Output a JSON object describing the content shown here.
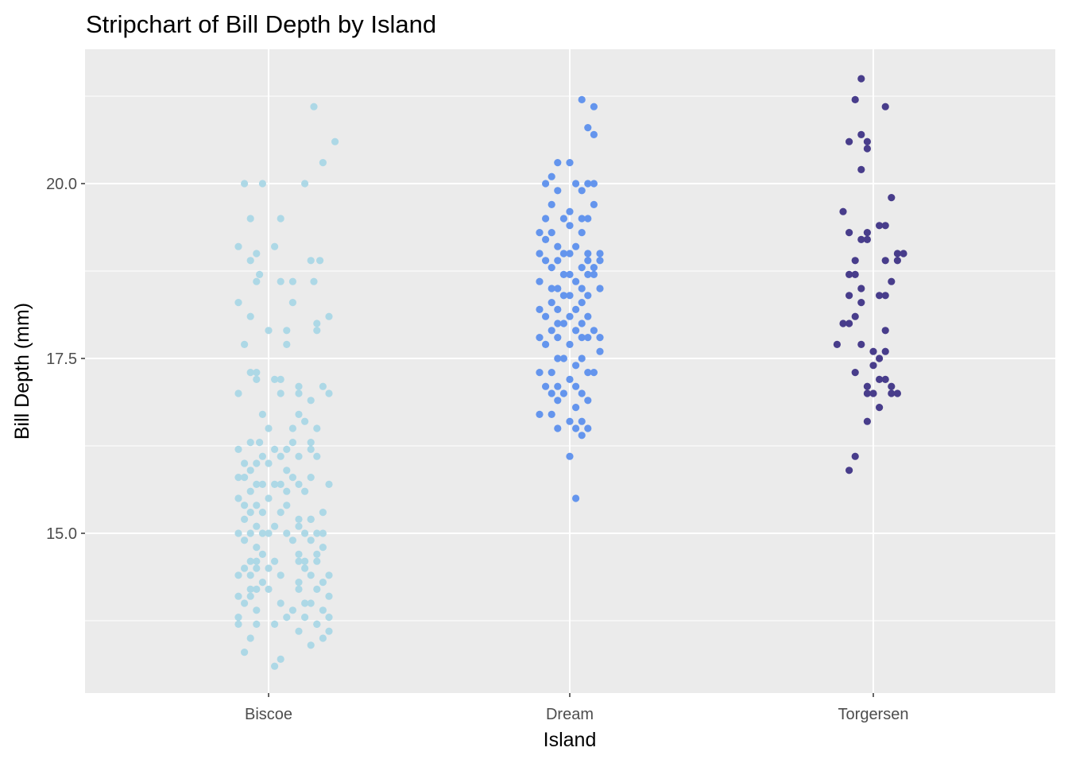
{
  "chart_data": {
    "type": "scatter",
    "subtype": "stripchart",
    "title": "Stripchart of Bill Depth by Island",
    "xlabel": "Island",
    "ylabel": "Bill Depth (mm)",
    "categories": [
      "Biscoe",
      "Dream",
      "Torgersen"
    ],
    "ylim": [
      13.0,
      21.5
    ],
    "y_ticks": [
      "15.0",
      "17.5",
      "20.0"
    ],
    "y_tick_values": [
      15.0,
      17.5,
      20.0
    ],
    "grid": true,
    "legend": "none",
    "panel_background": "#EBEBEB",
    "grid_color": "#FFFFFF",
    "series": [
      {
        "category": "Biscoe",
        "color": "#ADD8E6",
        "points": [
          [
            0.15,
            21.1
          ],
          [
            0.22,
            20.6
          ],
          [
            0.18,
            20.3
          ],
          [
            -0.08,
            20.0
          ],
          [
            -0.02,
            20.0
          ],
          [
            0.12,
            20.0
          ],
          [
            -0.06,
            19.5
          ],
          [
            0.04,
            19.5
          ],
          [
            -0.1,
            19.1
          ],
          [
            -0.04,
            19.0
          ],
          [
            0.02,
            19.1
          ],
          [
            -0.06,
            18.9
          ],
          [
            0.14,
            18.9
          ],
          [
            0.17,
            18.9
          ],
          [
            -0.03,
            18.7
          ],
          [
            0.04,
            18.6
          ],
          [
            -0.04,
            18.6
          ],
          [
            0.08,
            18.6
          ],
          [
            0.15,
            18.6
          ],
          [
            -0.1,
            18.3
          ],
          [
            0.08,
            18.3
          ],
          [
            -0.06,
            18.1
          ],
          [
            0.2,
            18.1
          ],
          [
            0.16,
            18.0
          ],
          [
            0.0,
            17.9
          ],
          [
            0.06,
            17.9
          ],
          [
            0.16,
            17.9
          ],
          [
            -0.08,
            17.7
          ],
          [
            0.06,
            17.7
          ],
          [
            -0.04,
            17.3
          ],
          [
            -0.06,
            17.3
          ],
          [
            0.04,
            17.2
          ],
          [
            -0.04,
            17.2
          ],
          [
            0.02,
            17.2
          ],
          [
            0.1,
            17.1
          ],
          [
            0.18,
            17.1
          ],
          [
            0.2,
            17.0
          ],
          [
            -0.1,
            17.0
          ],
          [
            0.04,
            17.0
          ],
          [
            0.1,
            17.0
          ],
          [
            0.14,
            16.9
          ],
          [
            -0.02,
            16.7
          ],
          [
            0.1,
            16.7
          ],
          [
            0.12,
            16.6
          ],
          [
            0.08,
            16.5
          ],
          [
            0.16,
            16.5
          ],
          [
            0.0,
            16.5
          ],
          [
            -0.06,
            16.3
          ],
          [
            -0.03,
            16.3
          ],
          [
            0.08,
            16.3
          ],
          [
            0.14,
            16.3
          ],
          [
            -0.1,
            16.2
          ],
          [
            0.02,
            16.2
          ],
          [
            0.06,
            16.2
          ],
          [
            0.14,
            16.2
          ],
          [
            -0.02,
            16.1
          ],
          [
            0.04,
            16.1
          ],
          [
            0.1,
            16.1
          ],
          [
            0.16,
            16.1
          ],
          [
            -0.08,
            16.0
          ],
          [
            -0.04,
            16.0
          ],
          [
            0.0,
            16.0
          ],
          [
            -0.06,
            15.9
          ],
          [
            0.06,
            15.9
          ],
          [
            -0.1,
            15.8
          ],
          [
            -0.08,
            15.8
          ],
          [
            0.08,
            15.8
          ],
          [
            0.14,
            15.8
          ],
          [
            -0.04,
            15.7
          ],
          [
            -0.02,
            15.7
          ],
          [
            0.02,
            15.7
          ],
          [
            0.04,
            15.7
          ],
          [
            0.1,
            15.7
          ],
          [
            0.2,
            15.7
          ],
          [
            -0.06,
            15.6
          ],
          [
            0.06,
            15.6
          ],
          [
            0.12,
            15.6
          ],
          [
            -0.1,
            15.5
          ],
          [
            0.0,
            15.5
          ],
          [
            -0.08,
            15.4
          ],
          [
            -0.04,
            15.4
          ],
          [
            0.06,
            15.4
          ],
          [
            0.18,
            15.3
          ],
          [
            -0.06,
            15.3
          ],
          [
            -0.02,
            15.3
          ],
          [
            0.04,
            15.3
          ],
          [
            0.14,
            15.2
          ],
          [
            0.1,
            15.2
          ],
          [
            0.14,
            15.2
          ],
          [
            -0.08,
            15.2
          ],
          [
            0.02,
            15.1
          ],
          [
            -0.04,
            15.1
          ],
          [
            0.1,
            15.1
          ],
          [
            0.18,
            15.0
          ],
          [
            -0.1,
            15.0
          ],
          [
            -0.06,
            15.0
          ],
          [
            -0.02,
            15.0
          ],
          [
            0.0,
            15.0
          ],
          [
            0.06,
            15.0
          ],
          [
            0.12,
            15.0
          ],
          [
            0.16,
            15.0
          ],
          [
            -0.08,
            14.9
          ],
          [
            0.08,
            14.9
          ],
          [
            0.14,
            14.9
          ],
          [
            -0.04,
            14.8
          ],
          [
            0.18,
            14.8
          ],
          [
            -0.02,
            14.7
          ],
          [
            0.1,
            14.7
          ],
          [
            0.16,
            14.7
          ],
          [
            -0.04,
            14.6
          ],
          [
            0.1,
            14.6
          ],
          [
            0.16,
            14.6
          ],
          [
            -0.06,
            14.6
          ],
          [
            0.12,
            14.6
          ],
          [
            0.02,
            14.6
          ],
          [
            -0.08,
            14.5
          ],
          [
            -0.04,
            14.5
          ],
          [
            0.0,
            14.5
          ],
          [
            0.12,
            14.5
          ],
          [
            -0.06,
            14.4
          ],
          [
            0.04,
            14.4
          ],
          [
            0.14,
            14.4
          ],
          [
            0.2,
            14.4
          ],
          [
            -0.1,
            14.4
          ],
          [
            -0.02,
            14.3
          ],
          [
            0.1,
            14.3
          ],
          [
            0.18,
            14.3
          ],
          [
            -0.06,
            14.2
          ],
          [
            0.16,
            14.2
          ],
          [
            -0.04,
            14.2
          ],
          [
            0.1,
            14.2
          ],
          [
            0.0,
            14.2
          ],
          [
            -0.1,
            14.1
          ],
          [
            -0.06,
            14.1
          ],
          [
            0.2,
            14.1
          ],
          [
            0.14,
            14.0
          ],
          [
            -0.08,
            14.0
          ],
          [
            0.04,
            14.0
          ],
          [
            0.12,
            14.0
          ],
          [
            -0.04,
            13.9
          ],
          [
            0.08,
            13.9
          ],
          [
            0.18,
            13.9
          ],
          [
            0.06,
            13.8
          ],
          [
            0.12,
            13.8
          ],
          [
            -0.1,
            13.8
          ],
          [
            0.2,
            13.8
          ],
          [
            -0.04,
            13.7
          ],
          [
            0.16,
            13.7
          ],
          [
            0.16,
            13.7
          ],
          [
            -0.1,
            13.7
          ],
          [
            0.02,
            13.7
          ],
          [
            0.1,
            13.6
          ],
          [
            0.2,
            13.6
          ],
          [
            0.18,
            13.5
          ],
          [
            -0.06,
            13.5
          ],
          [
            0.14,
            13.4
          ],
          [
            -0.08,
            13.3
          ],
          [
            0.04,
            13.2
          ],
          [
            0.02,
            13.1
          ]
        ]
      },
      {
        "category": "Dream",
        "color": "#6495ED",
        "points": [
          [
            0.04,
            21.2
          ],
          [
            0.08,
            21.1
          ],
          [
            0.06,
            20.8
          ],
          [
            0.08,
            20.7
          ],
          [
            0.0,
            20.3
          ],
          [
            -0.04,
            20.3
          ],
          [
            -0.06,
            20.1
          ],
          [
            0.02,
            20.0
          ],
          [
            0.06,
            20.0
          ],
          [
            0.08,
            20.0
          ],
          [
            -0.08,
            20.0
          ],
          [
            0.04,
            19.9
          ],
          [
            -0.04,
            19.9
          ],
          [
            0.08,
            19.7
          ],
          [
            -0.06,
            19.7
          ],
          [
            0.0,
            19.6
          ],
          [
            0.06,
            19.5
          ],
          [
            -0.02,
            19.5
          ],
          [
            0.04,
            19.5
          ],
          [
            -0.08,
            19.5
          ],
          [
            0.0,
            19.4
          ],
          [
            -0.06,
            19.3
          ],
          [
            0.04,
            19.3
          ],
          [
            -0.1,
            19.3
          ],
          [
            -0.08,
            19.2
          ],
          [
            0.02,
            19.1
          ],
          [
            -0.04,
            19.1
          ],
          [
            -0.02,
            19.0
          ],
          [
            0.06,
            19.0
          ],
          [
            0.0,
            19.0
          ],
          [
            -0.1,
            19.0
          ],
          [
            0.1,
            19.0
          ],
          [
            -0.04,
            18.9
          ],
          [
            0.06,
            18.9
          ],
          [
            0.1,
            18.9
          ],
          [
            -0.08,
            18.9
          ],
          [
            0.04,
            18.8
          ],
          [
            -0.06,
            18.8
          ],
          [
            0.08,
            18.8
          ],
          [
            -0.02,
            18.7
          ],
          [
            0.0,
            18.7
          ],
          [
            0.06,
            18.7
          ],
          [
            0.08,
            18.7
          ],
          [
            -0.1,
            18.6
          ],
          [
            0.02,
            18.6
          ],
          [
            -0.06,
            18.5
          ],
          [
            0.04,
            18.5
          ],
          [
            -0.04,
            18.5
          ],
          [
            0.1,
            18.5
          ],
          [
            -0.02,
            18.4
          ],
          [
            0.0,
            18.4
          ],
          [
            0.06,
            18.4
          ],
          [
            -0.06,
            18.3
          ],
          [
            0.04,
            18.3
          ],
          [
            -0.1,
            18.2
          ],
          [
            -0.04,
            18.2
          ],
          [
            0.02,
            18.2
          ],
          [
            -0.08,
            18.1
          ],
          [
            0.0,
            18.1
          ],
          [
            0.06,
            18.1
          ],
          [
            -0.02,
            18.0
          ],
          [
            0.04,
            18.0
          ],
          [
            -0.04,
            18.0
          ],
          [
            0.08,
            17.9
          ],
          [
            -0.06,
            17.9
          ],
          [
            0.02,
            17.9
          ],
          [
            -0.1,
            17.8
          ],
          [
            0.06,
            17.8
          ],
          [
            0.1,
            17.8
          ],
          [
            -0.04,
            17.8
          ],
          [
            0.04,
            17.8
          ],
          [
            0.0,
            17.7
          ],
          [
            -0.08,
            17.7
          ],
          [
            0.1,
            17.6
          ],
          [
            -0.02,
            17.5
          ],
          [
            -0.04,
            17.5
          ],
          [
            0.04,
            17.5
          ],
          [
            0.02,
            17.4
          ],
          [
            -0.06,
            17.3
          ],
          [
            0.08,
            17.3
          ],
          [
            -0.1,
            17.3
          ],
          [
            0.06,
            17.3
          ],
          [
            0.0,
            17.2
          ],
          [
            -0.08,
            17.1
          ],
          [
            -0.04,
            17.1
          ],
          [
            0.02,
            17.1
          ],
          [
            -0.06,
            17.0
          ],
          [
            -0.02,
            17.0
          ],
          [
            0.04,
            17.0
          ],
          [
            -0.04,
            16.9
          ],
          [
            0.06,
            16.9
          ],
          [
            0.02,
            16.8
          ],
          [
            -0.1,
            16.7
          ],
          [
            -0.06,
            16.7
          ],
          [
            0.0,
            16.6
          ],
          [
            0.04,
            16.6
          ],
          [
            0.06,
            16.5
          ],
          [
            0.02,
            16.5
          ],
          [
            -0.04,
            16.5
          ],
          [
            0.04,
            16.4
          ],
          [
            0.0,
            16.1
          ],
          [
            0.02,
            15.5
          ]
        ]
      },
      {
        "category": "Torgersen",
        "color": "#483D8B",
        "points": [
          [
            -0.04,
            21.5
          ],
          [
            -0.06,
            21.2
          ],
          [
            0.04,
            21.1
          ],
          [
            -0.04,
            20.7
          ],
          [
            -0.08,
            20.6
          ],
          [
            -0.02,
            20.6
          ],
          [
            -0.02,
            20.5
          ],
          [
            -0.04,
            20.2
          ],
          [
            0.06,
            19.8
          ],
          [
            -0.1,
            19.6
          ],
          [
            0.02,
            19.4
          ],
          [
            0.04,
            19.4
          ],
          [
            -0.02,
            19.3
          ],
          [
            -0.08,
            19.3
          ],
          [
            -0.02,
            19.2
          ],
          [
            -0.04,
            19.2
          ],
          [
            0.08,
            19.0
          ],
          [
            0.1,
            19.0
          ],
          [
            -0.06,
            18.9
          ],
          [
            0.04,
            18.9
          ],
          [
            0.08,
            18.9
          ],
          [
            -0.08,
            18.7
          ],
          [
            -0.06,
            18.7
          ],
          [
            0.06,
            18.6
          ],
          [
            -0.04,
            18.5
          ],
          [
            0.02,
            18.4
          ],
          [
            -0.08,
            18.4
          ],
          [
            0.04,
            18.4
          ],
          [
            -0.04,
            18.3
          ],
          [
            -0.06,
            18.1
          ],
          [
            -0.08,
            18.0
          ],
          [
            -0.1,
            18.0
          ],
          [
            0.04,
            17.9
          ],
          [
            -0.12,
            17.7
          ],
          [
            -0.04,
            17.7
          ],
          [
            0.0,
            17.6
          ],
          [
            0.04,
            17.6
          ],
          [
            0.02,
            17.5
          ],
          [
            0.0,
            17.4
          ],
          [
            -0.06,
            17.3
          ],
          [
            0.02,
            17.2
          ],
          [
            0.04,
            17.2
          ],
          [
            -0.02,
            17.1
          ],
          [
            0.06,
            17.1
          ],
          [
            0.0,
            17.0
          ],
          [
            0.06,
            17.0
          ],
          [
            -0.02,
            17.0
          ],
          [
            0.08,
            17.0
          ],
          [
            0.02,
            16.8
          ],
          [
            -0.02,
            16.6
          ],
          [
            -0.06,
            16.1
          ],
          [
            -0.08,
            15.9
          ]
        ]
      }
    ]
  }
}
